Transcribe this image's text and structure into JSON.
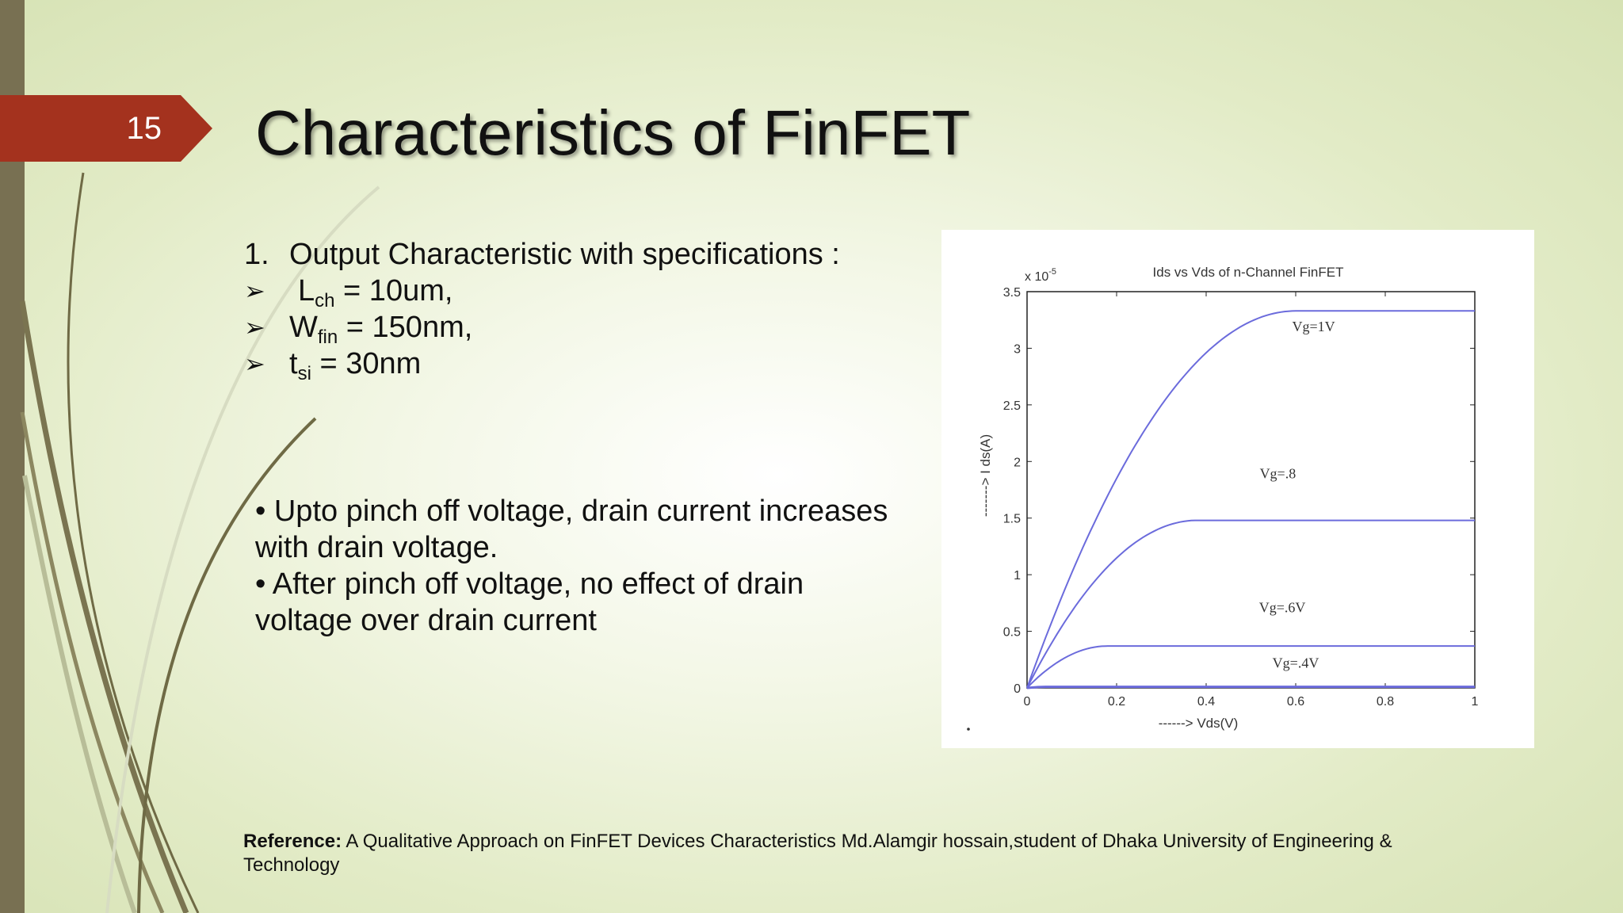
{
  "slide": {
    "number": "15",
    "title": "Characteristics of FinFET"
  },
  "colors": {
    "accent": "#a4321e",
    "side_band": "#787052",
    "curve": "#6b6bdc"
  },
  "specs": {
    "heading_number": "1.",
    "heading": "Output Characteristic with specifications :",
    "items": [
      {
        "var": "L",
        "sub": "ch",
        "value": " = 10um,"
      },
      {
        "var": "W",
        "sub": "fin",
        "value": " = 150nm,"
      },
      {
        "var": "t",
        "sub": "si",
        "value": " = 30nm"
      }
    ]
  },
  "bullets": [
    "• Upto pinch off voltage, drain current increases",
    "with drain voltage.",
    "• After pinch off voltage, no effect of drain",
    "voltage over drain current"
  ],
  "reference": {
    "label": "Reference:",
    "text": " A Qualitative Approach on FinFET Devices Characteristics Md.Alamgir hossain,student of Dhaka University of Engineering & Technology"
  },
  "chart_data": {
    "type": "line",
    "title": "Ids vs Vds of n-Channel FinFET",
    "xlabel": "------> Vds(V)",
    "ylabel": "-------> I ds(A)",
    "y_multiplier": "x 10",
    "y_multiplier_exp": "-5",
    "xlim": [
      0,
      1
    ],
    "ylim": [
      0,
      3.5
    ],
    "x_ticks": [
      "0",
      "0.2",
      "0.4",
      "0.6",
      "0.8",
      "1"
    ],
    "y_ticks": [
      "0",
      "0.5",
      "1",
      "1.5",
      "2",
      "2.5",
      "3",
      "3.5"
    ],
    "grid": false,
    "series": [
      {
        "name": "Vg=1V",
        "vsat": 0.6,
        "isat": 3.33
      },
      {
        "name": "Vg=.8",
        "vsat": 0.38,
        "isat": 1.48
      },
      {
        "name": "Vg=.6V",
        "vsat": 0.18,
        "isat": 0.37
      },
      {
        "name": "Vg=.4V",
        "vsat": 0.05,
        "isat": 0.01
      }
    ]
  }
}
